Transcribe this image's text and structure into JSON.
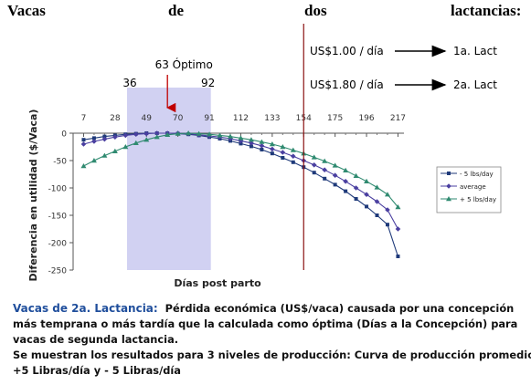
{
  "heading": {
    "words": [
      "Vacas",
      "de",
      "dos",
      "lactancias:"
    ]
  },
  "chart_data": {
    "type": "line",
    "title": "",
    "xlabel": "Días post parto",
    "ylabel": "Diferencia en utilidad ($/Vaca)",
    "x": [
      7,
      14,
      21,
      28,
      35,
      42,
      49,
      56,
      63,
      70,
      77,
      84,
      91,
      98,
      105,
      112,
      119,
      126,
      133,
      140,
      147,
      154,
      161,
      168,
      175,
      182,
      189,
      196,
      203,
      210,
      217
    ],
    "x_ticks": [
      7,
      28,
      49,
      70,
      91,
      112,
      133,
      154,
      175,
      196,
      217
    ],
    "xlim": [
      0,
      221
    ],
    "ylim": [
      -250,
      0
    ],
    "y_ticks": [
      0,
      -50,
      -100,
      -150,
      -200,
      -250
    ],
    "legend_position": "right",
    "series": [
      {
        "name": "- 5 lbs/day",
        "color": "#1f3a7a",
        "marker": "square",
        "values": [
          -12,
          -9,
          -6,
          -4,
          -2,
          -1,
          0,
          0,
          0,
          -1,
          -2,
          -4,
          -7,
          -10,
          -14,
          -19,
          -24,
          -30,
          -37,
          -45,
          -53,
          -62,
          -72,
          -83,
          -94,
          -106,
          -120,
          -134,
          -150,
          -167,
          -225
        ]
      },
      {
        "name": "average",
        "color": "#4a3fa0",
        "marker": "diamond",
        "values": [
          -20,
          -15,
          -11,
          -7,
          -4,
          -2,
          -1,
          0,
          0,
          0,
          -1,
          -3,
          -5,
          -7,
          -10,
          -14,
          -18,
          -23,
          -29,
          -35,
          -42,
          -50,
          -58,
          -67,
          -77,
          -88,
          -100,
          -112,
          -125,
          -140,
          -175
        ]
      },
      {
        "name": "+ 5 lbs/day",
        "color": "#2f8a70",
        "marker": "triangle",
        "values": [
          -60,
          -50,
          -41,
          -33,
          -25,
          -18,
          -12,
          -7,
          -3,
          -1,
          0,
          -1,
          -2,
          -4,
          -6,
          -9,
          -12,
          -16,
          -20,
          -25,
          -31,
          -37,
          -44,
          -51,
          -59,
          -68,
          -78,
          -88,
          -99,
          -112,
          -135
        ]
      }
    ],
    "optimal_range": {
      "start": 36,
      "end": 92
    },
    "optimum": {
      "label": "63 Óptimo",
      "x": 63
    },
    "range_labels": {
      "start": "36",
      "end": "92"
    },
    "vertical_marker_x": 154,
    "annotations": [
      {
        "price": "US$1.00 / día",
        "target": "1a. Lact"
      },
      {
        "price": "US$1.80 / día",
        "target": "2a. Lact"
      }
    ]
  },
  "caption": {
    "lead": "Vacas de 2a. Lactancia:",
    "line1_rest": "  Pérdida económica (US$/vaca) causada por una concepción",
    "line2": "más temprana o más tardía que la calculada como óptima (Días a la Concepción) para",
    "line3": "vacas de segunda lactancia.",
    "line4": "Se muestran los resultados para 3 niveles de producción:  Curva de producción promedio;",
    "line5": "+5 Libras/día  y  - 5 Libras/día"
  }
}
